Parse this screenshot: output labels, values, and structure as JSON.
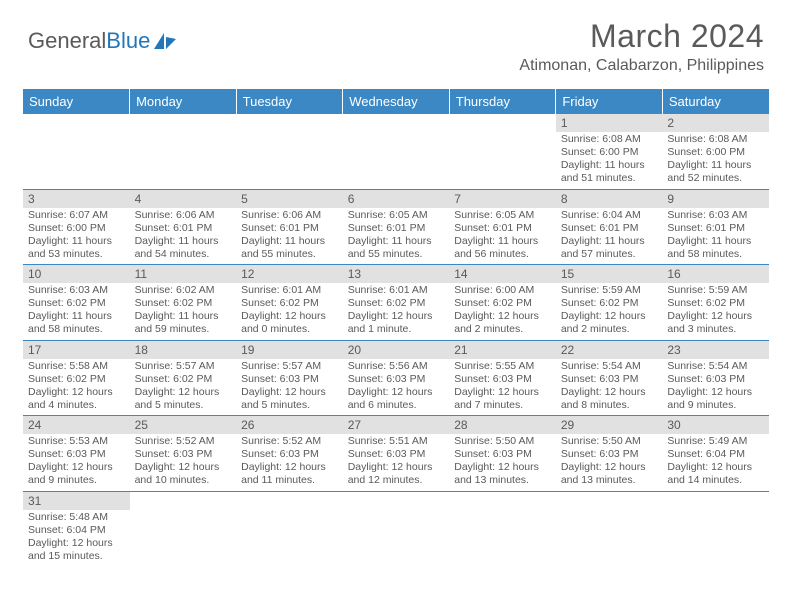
{
  "logo": {
    "text1": "General",
    "text2": "Blue"
  },
  "title": "March 2024",
  "location": "Atimonan, Calabarzon, Philippines",
  "colors": {
    "header_bg": "#3b88c4",
    "header_fg": "#ffffff",
    "daynum_bg": "#e1e1e1",
    "text": "#5a5a5a",
    "rule": "#3b88c4",
    "logo_accent": "#2277bb"
  },
  "typography": {
    "title_fontsize": 32,
    "location_fontsize": 16,
    "weekday_fontsize": 13,
    "daynum_fontsize": 12,
    "dayinfo_fontsize": 10.5
  },
  "weekdays": [
    "Sunday",
    "Monday",
    "Tuesday",
    "Wednesday",
    "Thursday",
    "Friday",
    "Saturday"
  ],
  "weeks": [
    [
      null,
      null,
      null,
      null,
      null,
      {
        "n": "1",
        "sr": "Sunrise: 6:08 AM",
        "ss": "Sunset: 6:00 PM",
        "dl": "Daylight: 11 hours and 51 minutes."
      },
      {
        "n": "2",
        "sr": "Sunrise: 6:08 AM",
        "ss": "Sunset: 6:00 PM",
        "dl": "Daylight: 11 hours and 52 minutes."
      }
    ],
    [
      {
        "n": "3",
        "sr": "Sunrise: 6:07 AM",
        "ss": "Sunset: 6:00 PM",
        "dl": "Daylight: 11 hours and 53 minutes."
      },
      {
        "n": "4",
        "sr": "Sunrise: 6:06 AM",
        "ss": "Sunset: 6:01 PM",
        "dl": "Daylight: 11 hours and 54 minutes."
      },
      {
        "n": "5",
        "sr": "Sunrise: 6:06 AM",
        "ss": "Sunset: 6:01 PM",
        "dl": "Daylight: 11 hours and 55 minutes."
      },
      {
        "n": "6",
        "sr": "Sunrise: 6:05 AM",
        "ss": "Sunset: 6:01 PM",
        "dl": "Daylight: 11 hours and 55 minutes."
      },
      {
        "n": "7",
        "sr": "Sunrise: 6:05 AM",
        "ss": "Sunset: 6:01 PM",
        "dl": "Daylight: 11 hours and 56 minutes."
      },
      {
        "n": "8",
        "sr": "Sunrise: 6:04 AM",
        "ss": "Sunset: 6:01 PM",
        "dl": "Daylight: 11 hours and 57 minutes."
      },
      {
        "n": "9",
        "sr": "Sunrise: 6:03 AM",
        "ss": "Sunset: 6:01 PM",
        "dl": "Daylight: 11 hours and 58 minutes."
      }
    ],
    [
      {
        "n": "10",
        "sr": "Sunrise: 6:03 AM",
        "ss": "Sunset: 6:02 PM",
        "dl": "Daylight: 11 hours and 58 minutes."
      },
      {
        "n": "11",
        "sr": "Sunrise: 6:02 AM",
        "ss": "Sunset: 6:02 PM",
        "dl": "Daylight: 11 hours and 59 minutes."
      },
      {
        "n": "12",
        "sr": "Sunrise: 6:01 AM",
        "ss": "Sunset: 6:02 PM",
        "dl": "Daylight: 12 hours and 0 minutes."
      },
      {
        "n": "13",
        "sr": "Sunrise: 6:01 AM",
        "ss": "Sunset: 6:02 PM",
        "dl": "Daylight: 12 hours and 1 minute."
      },
      {
        "n": "14",
        "sr": "Sunrise: 6:00 AM",
        "ss": "Sunset: 6:02 PM",
        "dl": "Daylight: 12 hours and 2 minutes."
      },
      {
        "n": "15",
        "sr": "Sunrise: 5:59 AM",
        "ss": "Sunset: 6:02 PM",
        "dl": "Daylight: 12 hours and 2 minutes."
      },
      {
        "n": "16",
        "sr": "Sunrise: 5:59 AM",
        "ss": "Sunset: 6:02 PM",
        "dl": "Daylight: 12 hours and 3 minutes."
      }
    ],
    [
      {
        "n": "17",
        "sr": "Sunrise: 5:58 AM",
        "ss": "Sunset: 6:02 PM",
        "dl": "Daylight: 12 hours and 4 minutes."
      },
      {
        "n": "18",
        "sr": "Sunrise: 5:57 AM",
        "ss": "Sunset: 6:02 PM",
        "dl": "Daylight: 12 hours and 5 minutes."
      },
      {
        "n": "19",
        "sr": "Sunrise: 5:57 AM",
        "ss": "Sunset: 6:03 PM",
        "dl": "Daylight: 12 hours and 5 minutes."
      },
      {
        "n": "20",
        "sr": "Sunrise: 5:56 AM",
        "ss": "Sunset: 6:03 PM",
        "dl": "Daylight: 12 hours and 6 minutes."
      },
      {
        "n": "21",
        "sr": "Sunrise: 5:55 AM",
        "ss": "Sunset: 6:03 PM",
        "dl": "Daylight: 12 hours and 7 minutes."
      },
      {
        "n": "22",
        "sr": "Sunrise: 5:54 AM",
        "ss": "Sunset: 6:03 PM",
        "dl": "Daylight: 12 hours and 8 minutes."
      },
      {
        "n": "23",
        "sr": "Sunrise: 5:54 AM",
        "ss": "Sunset: 6:03 PM",
        "dl": "Daylight: 12 hours and 9 minutes."
      }
    ],
    [
      {
        "n": "24",
        "sr": "Sunrise: 5:53 AM",
        "ss": "Sunset: 6:03 PM",
        "dl": "Daylight: 12 hours and 9 minutes."
      },
      {
        "n": "25",
        "sr": "Sunrise: 5:52 AM",
        "ss": "Sunset: 6:03 PM",
        "dl": "Daylight: 12 hours and 10 minutes."
      },
      {
        "n": "26",
        "sr": "Sunrise: 5:52 AM",
        "ss": "Sunset: 6:03 PM",
        "dl": "Daylight: 12 hours and 11 minutes."
      },
      {
        "n": "27",
        "sr": "Sunrise: 5:51 AM",
        "ss": "Sunset: 6:03 PM",
        "dl": "Daylight: 12 hours and 12 minutes."
      },
      {
        "n": "28",
        "sr": "Sunrise: 5:50 AM",
        "ss": "Sunset: 6:03 PM",
        "dl": "Daylight: 12 hours and 13 minutes."
      },
      {
        "n": "29",
        "sr": "Sunrise: 5:50 AM",
        "ss": "Sunset: 6:03 PM",
        "dl": "Daylight: 12 hours and 13 minutes."
      },
      {
        "n": "30",
        "sr": "Sunrise: 5:49 AM",
        "ss": "Sunset: 6:04 PM",
        "dl": "Daylight: 12 hours and 14 minutes."
      }
    ],
    [
      {
        "n": "31",
        "sr": "Sunrise: 5:48 AM",
        "ss": "Sunset: 6:04 PM",
        "dl": "Daylight: 12 hours and 15 minutes."
      },
      null,
      null,
      null,
      null,
      null,
      null
    ]
  ]
}
